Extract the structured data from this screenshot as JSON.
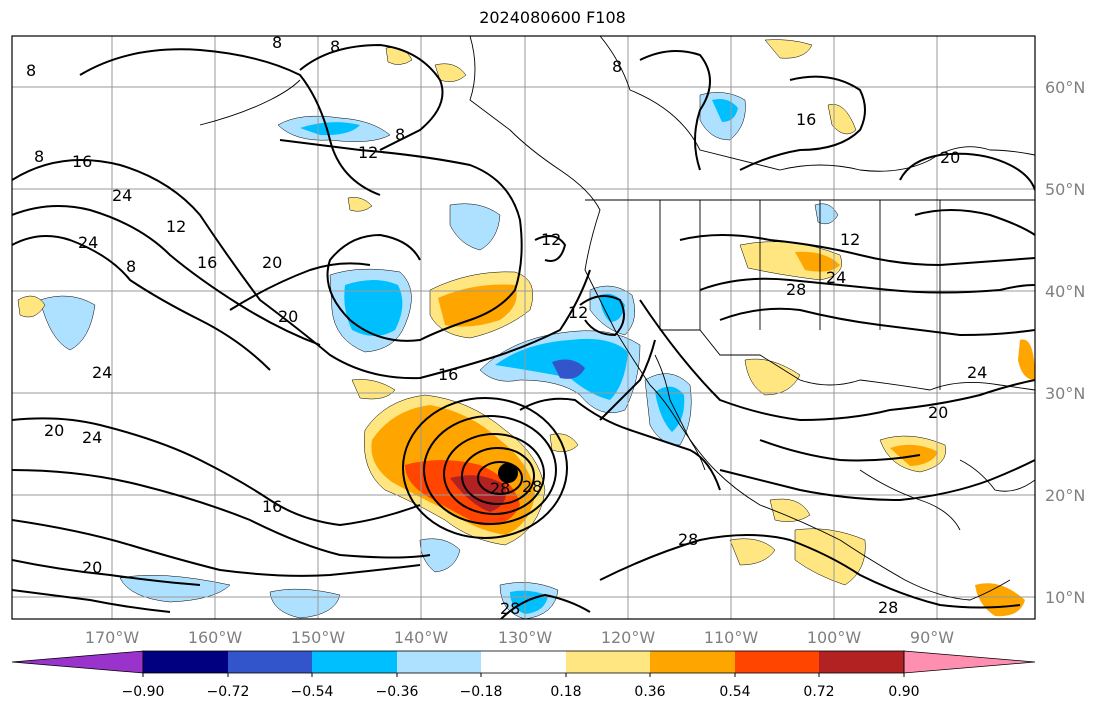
{
  "title": "2024080600 F108",
  "map": {
    "lon_ticks": [
      "170°W",
      "160°W",
      "150°W",
      "140°W",
      "130°W",
      "120°W",
      "110°W",
      "100°W",
      "90°W"
    ],
    "lat_ticks": [
      "60°N",
      "50°N",
      "40°N",
      "30°N",
      "20°N",
      "10°N"
    ],
    "contour_labels": [
      "8",
      "8",
      "8",
      "8",
      "8",
      "8",
      "8",
      "12",
      "12",
      "12",
      "12",
      "12",
      "16",
      "16",
      "16",
      "16",
      "16",
      "20",
      "20",
      "20",
      "20",
      "20",
      "20",
      "24",
      "24",
      "24",
      "24",
      "24",
      "24",
      "28",
      "28",
      "28",
      "28",
      "28",
      "28"
    ],
    "storm_center": {
      "lon": -130.4,
      "lat": 22.4
    }
  },
  "colorbar": {
    "ticks": [
      "−0.90",
      "−0.72",
      "−0.54",
      "−0.36",
      "−0.18",
      "0.18",
      "0.36",
      "0.54",
      "0.72",
      "0.90"
    ],
    "colors": [
      "#9933cc",
      "#000080",
      "#3355cc",
      "#00bfff",
      "#aee0ff",
      "#ffffff",
      "#ffe680",
      "#ffa500",
      "#ff4500",
      "#b22222",
      "#ff8fb0"
    ]
  }
}
